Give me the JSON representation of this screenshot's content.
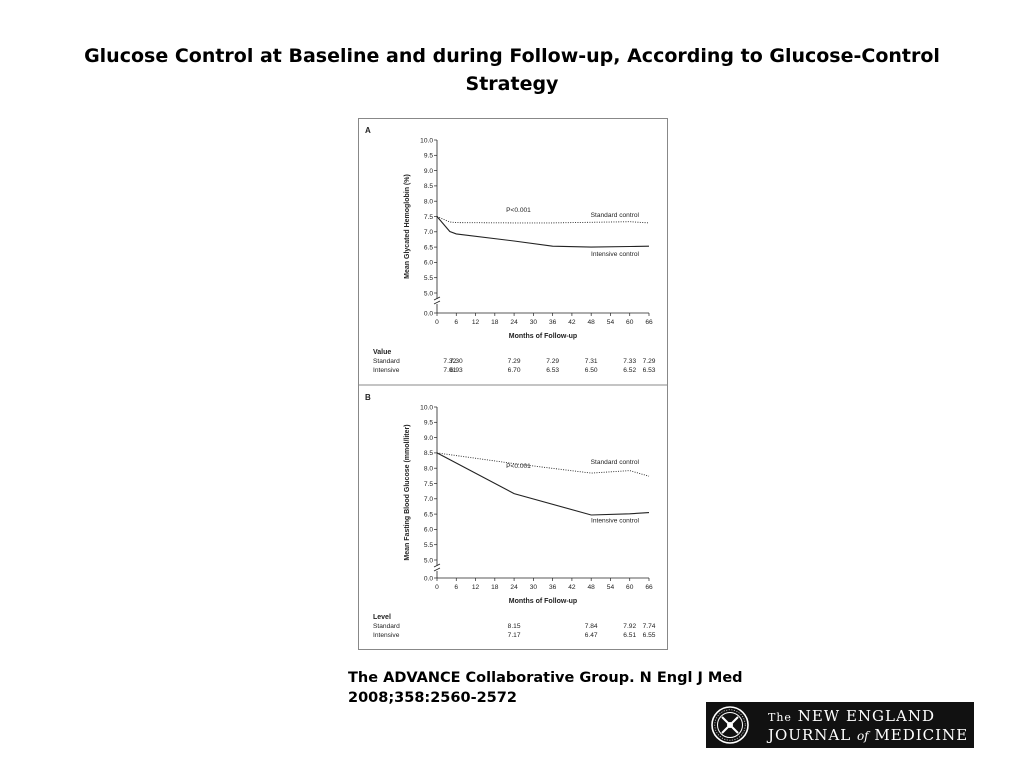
{
  "slide": {
    "title": "Glucose Control at Baseline and during Follow-up, According to Glucose-Control Strategy",
    "citation_line1": "The ADVANCE Collaborative Group. N Engl J Med",
    "citation_line2": "2008;358:2560-2572"
  },
  "logo": {
    "the": "The",
    "line1_rest": "NEW ENGLAND",
    "line2_a": "JOURNAL",
    "line2_of": "of",
    "line2_b": "MEDICINE"
  },
  "chart_data": [
    {
      "type": "line",
      "panel": "A",
      "ylabel": "Mean Glycated Hemoglobin (%)",
      "xlabel": "Months of Follow-up",
      "x_ticks": [
        0,
        6,
        12,
        18,
        24,
        30,
        36,
        42,
        48,
        54,
        60,
        66
      ],
      "y_ticks": [
        "0.0",
        "5.0",
        "5.5",
        "6.0",
        "6.5",
        "7.0",
        "7.5",
        "8.0",
        "8.5",
        "9.0",
        "9.5",
        "10.0"
      ],
      "ylim": [
        5.0,
        10.0
      ],
      "axis_break": true,
      "annotation": "P<0.001",
      "series": [
        {
          "name": "Standard control",
          "style": "dotted",
          "x": [
            0,
            4,
            6,
            24,
            36,
            48,
            60,
            66
          ],
          "y": [
            7.5,
            7.32,
            7.3,
            7.29,
            7.29,
            7.31,
            7.33,
            7.29
          ]
        },
        {
          "name": "Intensive control",
          "style": "solid",
          "x": [
            0,
            4,
            6,
            24,
            36,
            48,
            60,
            66
          ],
          "y": [
            7.5,
            7.01,
            6.93,
            6.7,
            6.53,
            6.5,
            6.52,
            6.53
          ]
        }
      ],
      "table": {
        "heading": "Value",
        "rows": [
          {
            "label": "Standard",
            "x": [
              4,
              6,
              24,
              36,
              48,
              60,
              66
            ],
            "values": [
              "7.32",
              "7.30",
              "7.29",
              "7.29",
              "7.31",
              "7.33",
              "7.29"
            ]
          },
          {
            "label": "Intensive",
            "x": [
              4,
              6,
              24,
              36,
              48,
              60,
              66
            ],
            "values": [
              "7.01",
              "6.93",
              "6.70",
              "6.53",
              "6.50",
              "6.52",
              "6.53"
            ]
          }
        ]
      }
    },
    {
      "type": "line",
      "panel": "B",
      "ylabel": "Mean Fasting Blood Glucose (mmol/liter)",
      "xlabel": "Months of Follow-up",
      "x_ticks": [
        0,
        6,
        12,
        18,
        24,
        30,
        36,
        42,
        48,
        54,
        60,
        66
      ],
      "y_ticks": [
        "0.0",
        "5.0",
        "5.5",
        "6.0",
        "6.5",
        "7.0",
        "7.5",
        "8.0",
        "8.5",
        "9.0",
        "9.5",
        "10.0"
      ],
      "ylim": [
        5.0,
        10.0
      ],
      "axis_break": true,
      "annotation": "P<0.001",
      "series": [
        {
          "name": "Standard control",
          "style": "dotted",
          "x": [
            0,
            24,
            48,
            60,
            66
          ],
          "y": [
            8.5,
            8.15,
            7.84,
            7.92,
            7.74
          ]
        },
        {
          "name": "Intensive control",
          "style": "solid",
          "x": [
            0,
            24,
            48,
            60,
            66
          ],
          "y": [
            8.5,
            7.17,
            6.47,
            6.51,
            6.55
          ]
        }
      ],
      "table": {
        "heading": "Level",
        "rows": [
          {
            "label": "Standard",
            "x": [
              24,
              48,
              60,
              66
            ],
            "values": [
              "8.15",
              "7.84",
              "7.92",
              "7.74"
            ]
          },
          {
            "label": "Intensive",
            "x": [
              24,
              48,
              60,
              66
            ],
            "values": [
              "7.17",
              "6.47",
              "6.51",
              "6.55"
            ]
          }
        ]
      }
    }
  ]
}
